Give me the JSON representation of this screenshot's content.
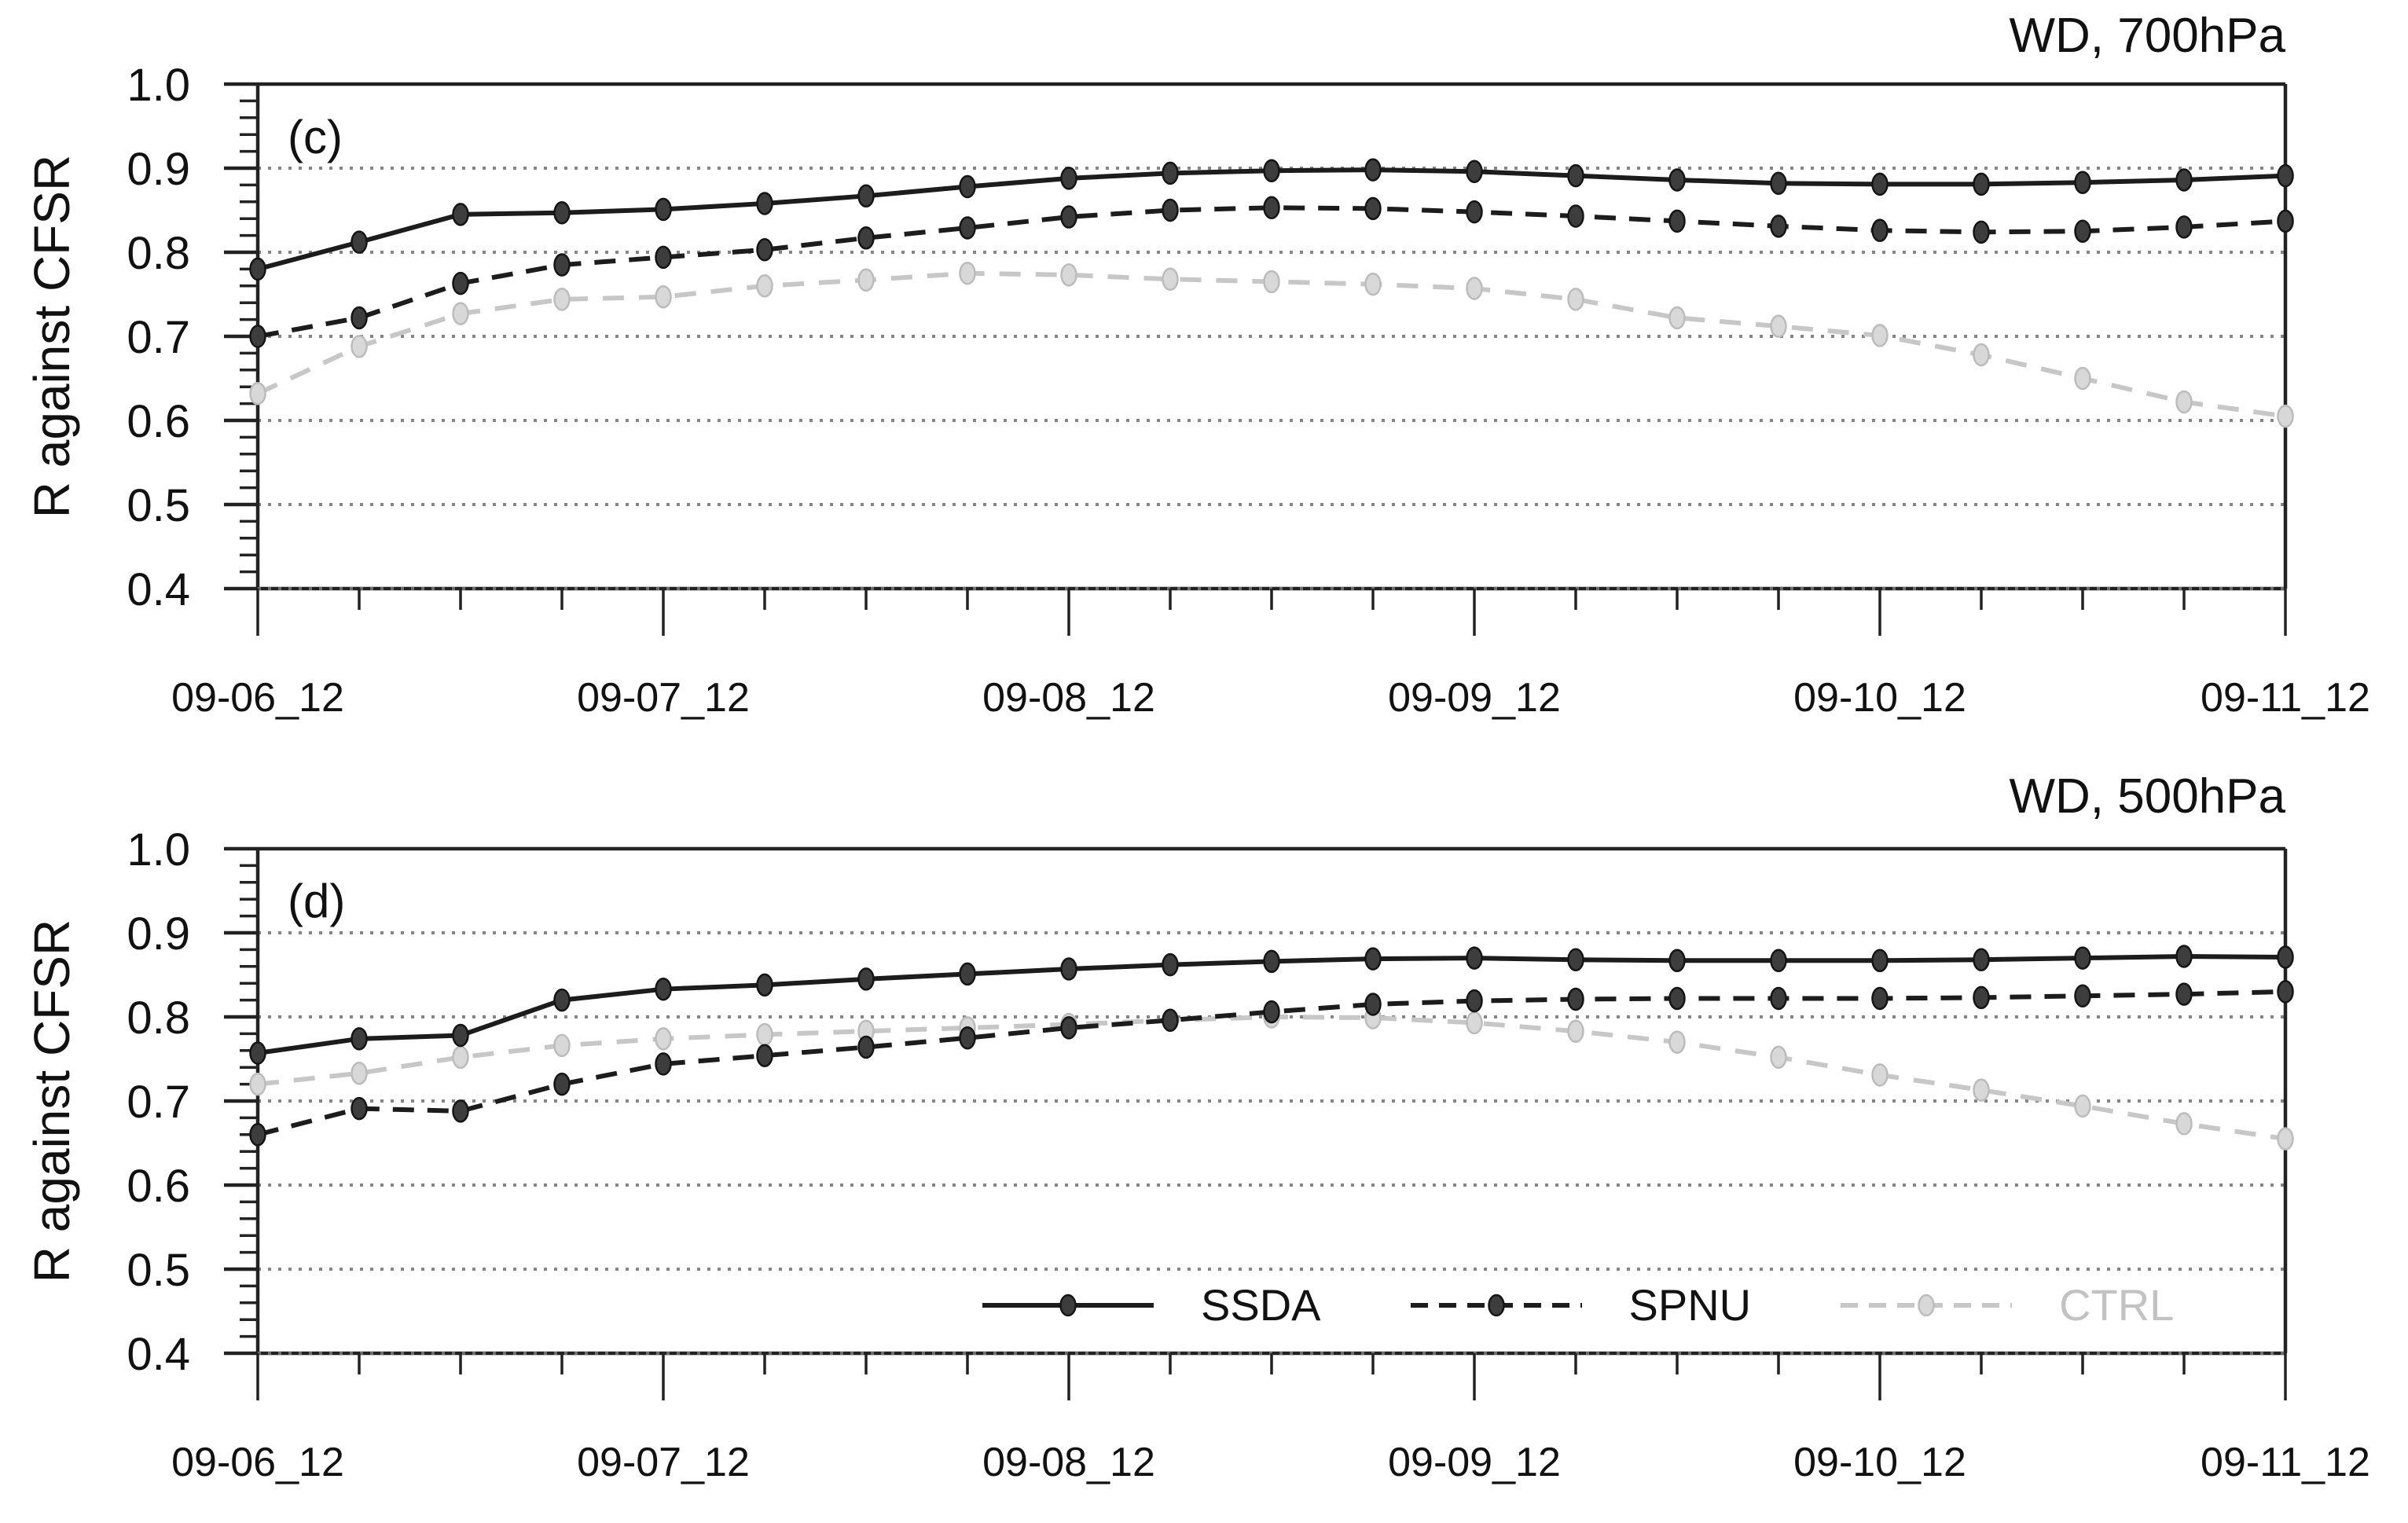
{
  "colors": {
    "axis": "#222222",
    "grid": "#858585",
    "text": "#111111",
    "dark_series": "#1c1c1c",
    "light_series": "#c7c7c7",
    "light_text": "#c2c2c2",
    "series_styles": {
      "solid-dark": {
        "stroke": "#1c1c1c",
        "dash": "none",
        "marker_fill": "#3d3d3d",
        "marker_stroke": "#151515"
      },
      "dashed-dark": {
        "stroke": "#1c1c1c",
        "dash": "27 17",
        "marker_fill": "#3d3d3d",
        "marker_stroke": "#151515"
      },
      "dashed-light": {
        "stroke": "#c7c7c7",
        "dash": "27 19",
        "marker_fill": "#d8d8d8",
        "marker_stroke": "#bcbcbc"
      }
    }
  },
  "legend": {
    "items": [
      {
        "label": "SSDA",
        "style": "solid-dark"
      },
      {
        "label": "SPNU",
        "style": "dashed-dark"
      },
      {
        "label": "CTRL",
        "style": "dashed-light"
      }
    ],
    "position": "inside bottom of panel (d)"
  },
  "chart_data": {
    "type": "line",
    "x_tick_labels": [
      "09-06_12",
      "09-07_12",
      "09-08_12",
      "09-09_12",
      "09-10_12",
      "09-11_12"
    ],
    "x_sampling": "21 points per series, every 6 hours from 09-06_12 to 09-11_12",
    "ylim": [
      0.4,
      1.0
    ],
    "y_tick_labels": [
      "1.0",
      "0.9",
      "0.8",
      "0.7",
      "0.6",
      "0.5",
      "0.4"
    ],
    "y_major_step": 0.1,
    "y_minor_step": 0.02,
    "grid": "horizontal dotted lines at every 0.1",
    "panels": [
      {
        "id": "c",
        "label": "(c)",
        "title": "WD, 700hPa",
        "ylabel": "R against CFSR",
        "series": [
          {
            "name": "SSDA",
            "style": "solid-dark",
            "values": [
              0.78,
              0.812,
              0.845,
              0.847,
              0.851,
              0.858,
              0.867,
              0.878,
              0.888,
              0.894,
              0.897,
              0.898,
              0.896,
              0.891,
              0.886,
              0.882,
              0.881,
              0.881,
              0.883,
              0.886,
              0.891
            ]
          },
          {
            "name": "SPNU",
            "style": "dashed-dark",
            "values": [
              0.7,
              0.722,
              0.763,
              0.785,
              0.794,
              0.803,
              0.817,
              0.829,
              0.842,
              0.85,
              0.853,
              0.852,
              0.848,
              0.843,
              0.837,
              0.831,
              0.826,
              0.824,
              0.825,
              0.83,
              0.837
            ]
          },
          {
            "name": "CTRL",
            "style": "dashed-light",
            "values": [
              0.632,
              0.688,
              0.727,
              0.744,
              0.747,
              0.76,
              0.767,
              0.775,
              0.773,
              0.768,
              0.765,
              0.762,
              0.757,
              0.744,
              0.722,
              0.712,
              0.701,
              0.678,
              0.65,
              0.622,
              0.605
            ]
          }
        ]
      },
      {
        "id": "d",
        "label": "(d)",
        "title": "WD, 500hPa",
        "ylabel": "R against CFSR",
        "series": [
          {
            "name": "SSDA",
            "style": "solid-dark",
            "values": [
              0.757,
              0.774,
              0.778,
              0.82,
              0.833,
              0.838,
              0.845,
              0.851,
              0.857,
              0.862,
              0.866,
              0.869,
              0.87,
              0.868,
              0.867,
              0.867,
              0.867,
              0.868,
              0.87,
              0.872,
              0.871
            ]
          },
          {
            "name": "SPNU",
            "style": "dashed-dark",
            "values": [
              0.66,
              0.691,
              0.688,
              0.72,
              0.744,
              0.754,
              0.764,
              0.775,
              0.787,
              0.796,
              0.806,
              0.815,
              0.819,
              0.821,
              0.822,
              0.822,
              0.822,
              0.823,
              0.825,
              0.827,
              0.83
            ]
          },
          {
            "name": "CTRL",
            "style": "dashed-light",
            "values": [
              0.72,
              0.733,
              0.752,
              0.766,
              0.774,
              0.779,
              0.783,
              0.787,
              0.791,
              0.796,
              0.8,
              0.799,
              0.793,
              0.783,
              0.77,
              0.752,
              0.731,
              0.713,
              0.694,
              0.673,
              0.655
            ]
          }
        ]
      }
    ]
  }
}
